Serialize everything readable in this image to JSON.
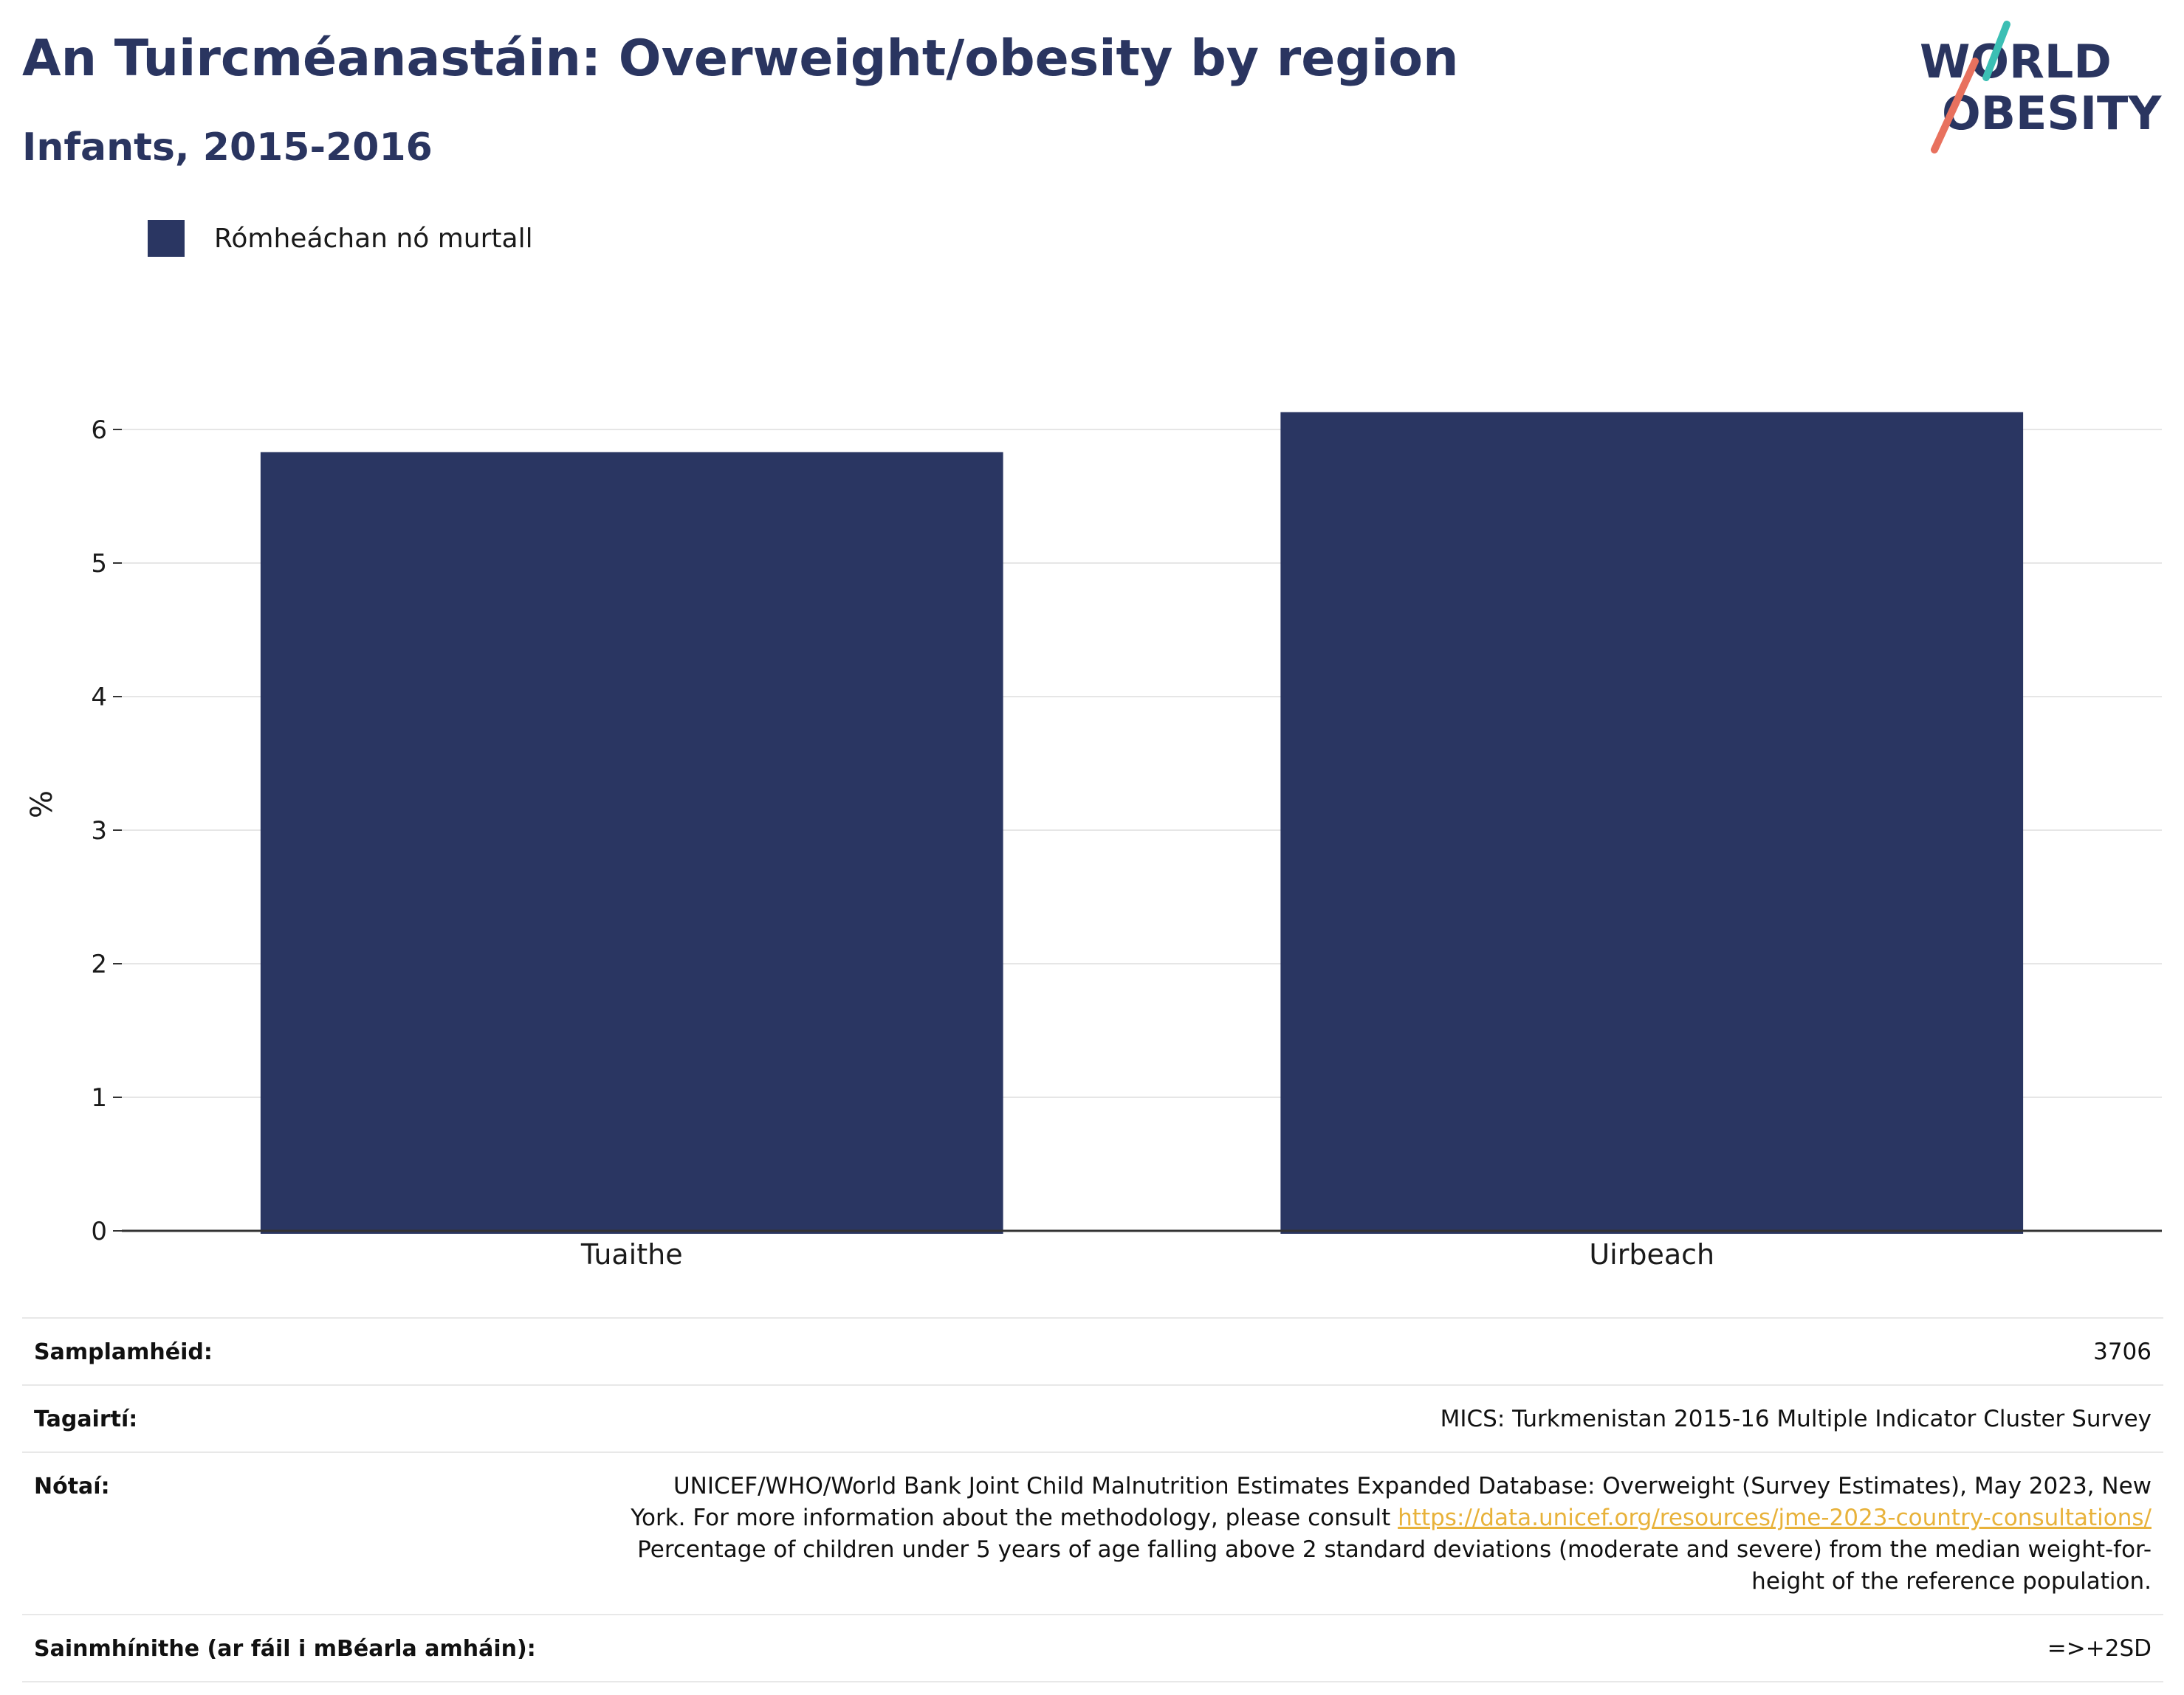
{
  "title": "An Tuircméanastáin: Overweight/obesity by region",
  "subtitle": "Infants, 2015-2016",
  "logo": {
    "line1": "WORLD",
    "line2": "OBESITY"
  },
  "colors": {
    "bar": "#2a3662",
    "title": "#2a3560",
    "link": "#e8b23a",
    "logo_teal": "#3bbfb4",
    "logo_coral": "#e8715e"
  },
  "chart_data": {
    "type": "bar",
    "title": "An Tuircméanastáin: Overweight/obesity by region",
    "subtitle": "Infants, 2015-2016",
    "categories": [
      "Tuaithe",
      "Uirbeach"
    ],
    "series": [
      {
        "name": "Rómheáchan nó murtall",
        "values": [
          5.83,
          6.13
        ]
      }
    ],
    "xlabel": "",
    "ylabel": "%",
    "ylim": [
      0,
      6.6
    ],
    "yticks": [
      0,
      1,
      2,
      3,
      4,
      5,
      6
    ],
    "grid": true,
    "legend_position": "top-left"
  },
  "table": {
    "sample_label": "Samplamhéid:",
    "sample_value": "3706",
    "refs_label": "Tagairtí:",
    "refs_value": "MICS: Turkmenistan 2015-16 Multiple Indicator Cluster Survey",
    "notes_label": "Nótaí:",
    "notes_line1": "UNICEF/WHO/World Bank Joint Child Malnutrition Estimates Expanded Database: Overweight (Survey Estimates), May 2023, New",
    "notes_line2_pre": "York. For more information about the methodology, please consult ",
    "notes_link": "https://data.unicef.org/resources/jme-2023-country-consultations/",
    "notes_line3": "Percentage of children under 5 years of age falling above 2 standard deviations (moderate and severe) from the median weight-for-",
    "notes_line4": "height of the reference population.",
    "defs_label": "Sainmhínithe (ar fáil i mBéarla amháin):",
    "defs_value": "=>+2SD"
  }
}
